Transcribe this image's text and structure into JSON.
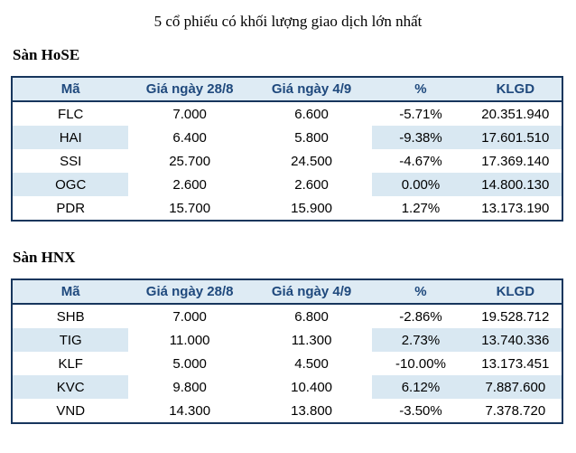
{
  "title": "5 cổ phiếu có khối lượng giao dịch lớn nhất",
  "colors": {
    "border": "#17365D",
    "header_bg": "#DEEBF4",
    "header_text": "#1F497D",
    "stripe_bg": "#D9E8F2",
    "negative": "#C00000",
    "zero": "#F9B233",
    "positive": "#00A651"
  },
  "chart_data": [
    {
      "type": "table",
      "title": "Sàn HoSE",
      "columns": [
        "Mã",
        "Giá ngày 28/8",
        "Giá ngày 4/9",
        "%",
        "KLGD"
      ],
      "rows": [
        {
          "code": "FLC",
          "price_28_8": "7.000",
          "price_4_9": "6.600",
          "pct": "-5.71%",
          "klgd": "20.351.940"
        },
        {
          "code": "HAI",
          "price_28_8": "6.400",
          "price_4_9": "5.800",
          "pct": "-9.38%",
          "klgd": "17.601.510"
        },
        {
          "code": "SSI",
          "price_28_8": "25.700",
          "price_4_9": "24.500",
          "pct": "-4.67%",
          "klgd": "17.369.140"
        },
        {
          "code": "OGC",
          "price_28_8": "2.600",
          "price_4_9": "2.600",
          "pct": "0.00%",
          "klgd": "14.800.130"
        },
        {
          "code": "PDR",
          "price_28_8": "15.700",
          "price_4_9": "15.900",
          "pct": "1.27%",
          "klgd": "13.173.190"
        }
      ]
    },
    {
      "type": "table",
      "title": "Sàn HNX",
      "columns": [
        "Mã",
        "Giá ngày 28/8",
        "Giá ngày 4/9",
        "%",
        "KLGD"
      ],
      "rows": [
        {
          "code": "SHB",
          "price_28_8": "7.000",
          "price_4_9": "6.800",
          "pct": "-2.86%",
          "klgd": "19.528.712"
        },
        {
          "code": "TIG",
          "price_28_8": "11.000",
          "price_4_9": "11.300",
          "pct": "2.73%",
          "klgd": "13.740.336"
        },
        {
          "code": "KLF",
          "price_28_8": "5.000",
          "price_4_9": "4.500",
          "pct": "-10.00%",
          "klgd": "13.173.451"
        },
        {
          "code": "KVC",
          "price_28_8": "9.800",
          "price_4_9": "10.400",
          "pct": "6.12%",
          "klgd": "7.887.600"
        },
        {
          "code": "VND",
          "price_28_8": "14.300",
          "price_4_9": "13.800",
          "pct": "-3.50%",
          "klgd": "7.378.720"
        }
      ]
    }
  ]
}
